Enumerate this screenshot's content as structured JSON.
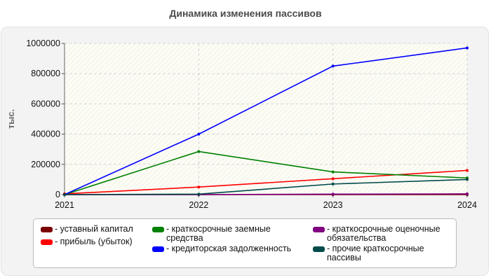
{
  "chart_data": {
    "type": "line",
    "title": "Динамика изменения пассивов",
    "ylabel": "тыс.",
    "xlabel": "",
    "x": [
      "2021",
      "2022",
      "2023",
      "2024"
    ],
    "ylim": [
      0,
      1000000
    ],
    "yticks": [
      0,
      200000,
      400000,
      600000,
      800000,
      1000000
    ],
    "ytick_labels": [
      "0",
      "200000",
      "400000",
      "600000",
      "800000",
      "1000000"
    ],
    "grid": true,
    "legend_position": "bottom",
    "series": [
      {
        "name": "уставный капитал",
        "color": "#7a0000",
        "values": [
          0,
          0,
          0,
          0
        ]
      },
      {
        "name": "прибыль (убыток)",
        "color": "#ff0000",
        "values": [
          5000,
          50000,
          105000,
          160000
        ]
      },
      {
        "name": "краткосрочные заемные средства",
        "color": "#008000",
        "values": [
          0,
          285000,
          150000,
          110000
        ]
      },
      {
        "name": "кредиторская задолженность",
        "color": "#0000ff",
        "values": [
          0,
          400000,
          850000,
          970000
        ]
      },
      {
        "name": "краткосрочные оценочные обязательства",
        "color": "#800080",
        "values": [
          0,
          0,
          3000,
          5000
        ]
      },
      {
        "name": "прочие краткосрочные пассивы",
        "color": "#004a4a",
        "values": [
          0,
          3000,
          70000,
          100000
        ]
      }
    ]
  }
}
